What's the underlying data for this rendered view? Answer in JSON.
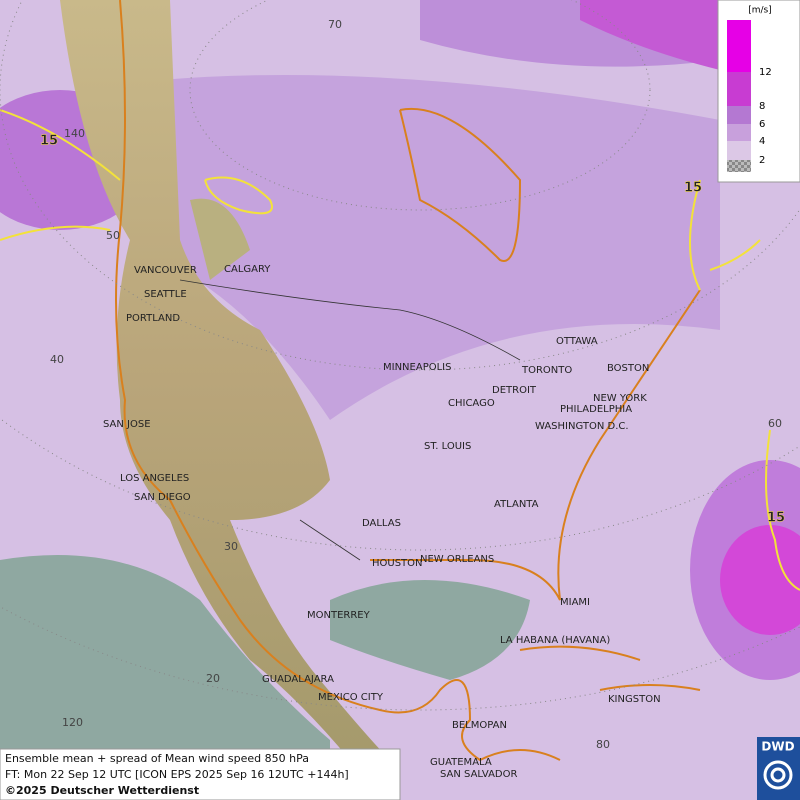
{
  "map": {
    "cities": [
      "VANCOUVER",
      "CALGARY",
      "SEATTLE",
      "PORTLAND",
      "MINNEAPOLIS",
      "OTTAWA",
      "TORONTO",
      "DETROIT",
      "BOSTON",
      "NEW YORK",
      "PHILADELPHIA",
      "CHICAGO",
      "WASHINGTON D.C.",
      "SAN JOSE",
      "ST. LOUIS",
      "LOS ANGELES",
      "SAN DIEGO",
      "ATLANTA",
      "DALLAS",
      "HOUSTON",
      "NEW ORLEANS",
      "MIAMI",
      "MONTERREY",
      "LA HABANA (HAVANA)",
      "GUADALAJARA",
      "MEXICO CITY",
      "KINGSTON",
      "BELMOPAN",
      "GUATEMALA",
      "SAN SALVADOR"
    ],
    "grid_labels": [
      70,
      140,
      50,
      40,
      60,
      30,
      20,
      120,
      80
    ],
    "contour_labels": [
      15,
      15,
      15
    ]
  },
  "legend": {
    "unit": "[m/s]",
    "ticks": [
      2,
      4,
      6,
      8,
      12
    ]
  },
  "caption": [
    "Ensemble mean + spread of Mean wind speed 850 hPa",
    "FT: Mon 22 Sep 12 UTC [ICON EPS 2025 Sep 16 12UTC +144h]",
    "©2025 Deutscher Wetterdienst"
  ],
  "logo": "DWD"
}
